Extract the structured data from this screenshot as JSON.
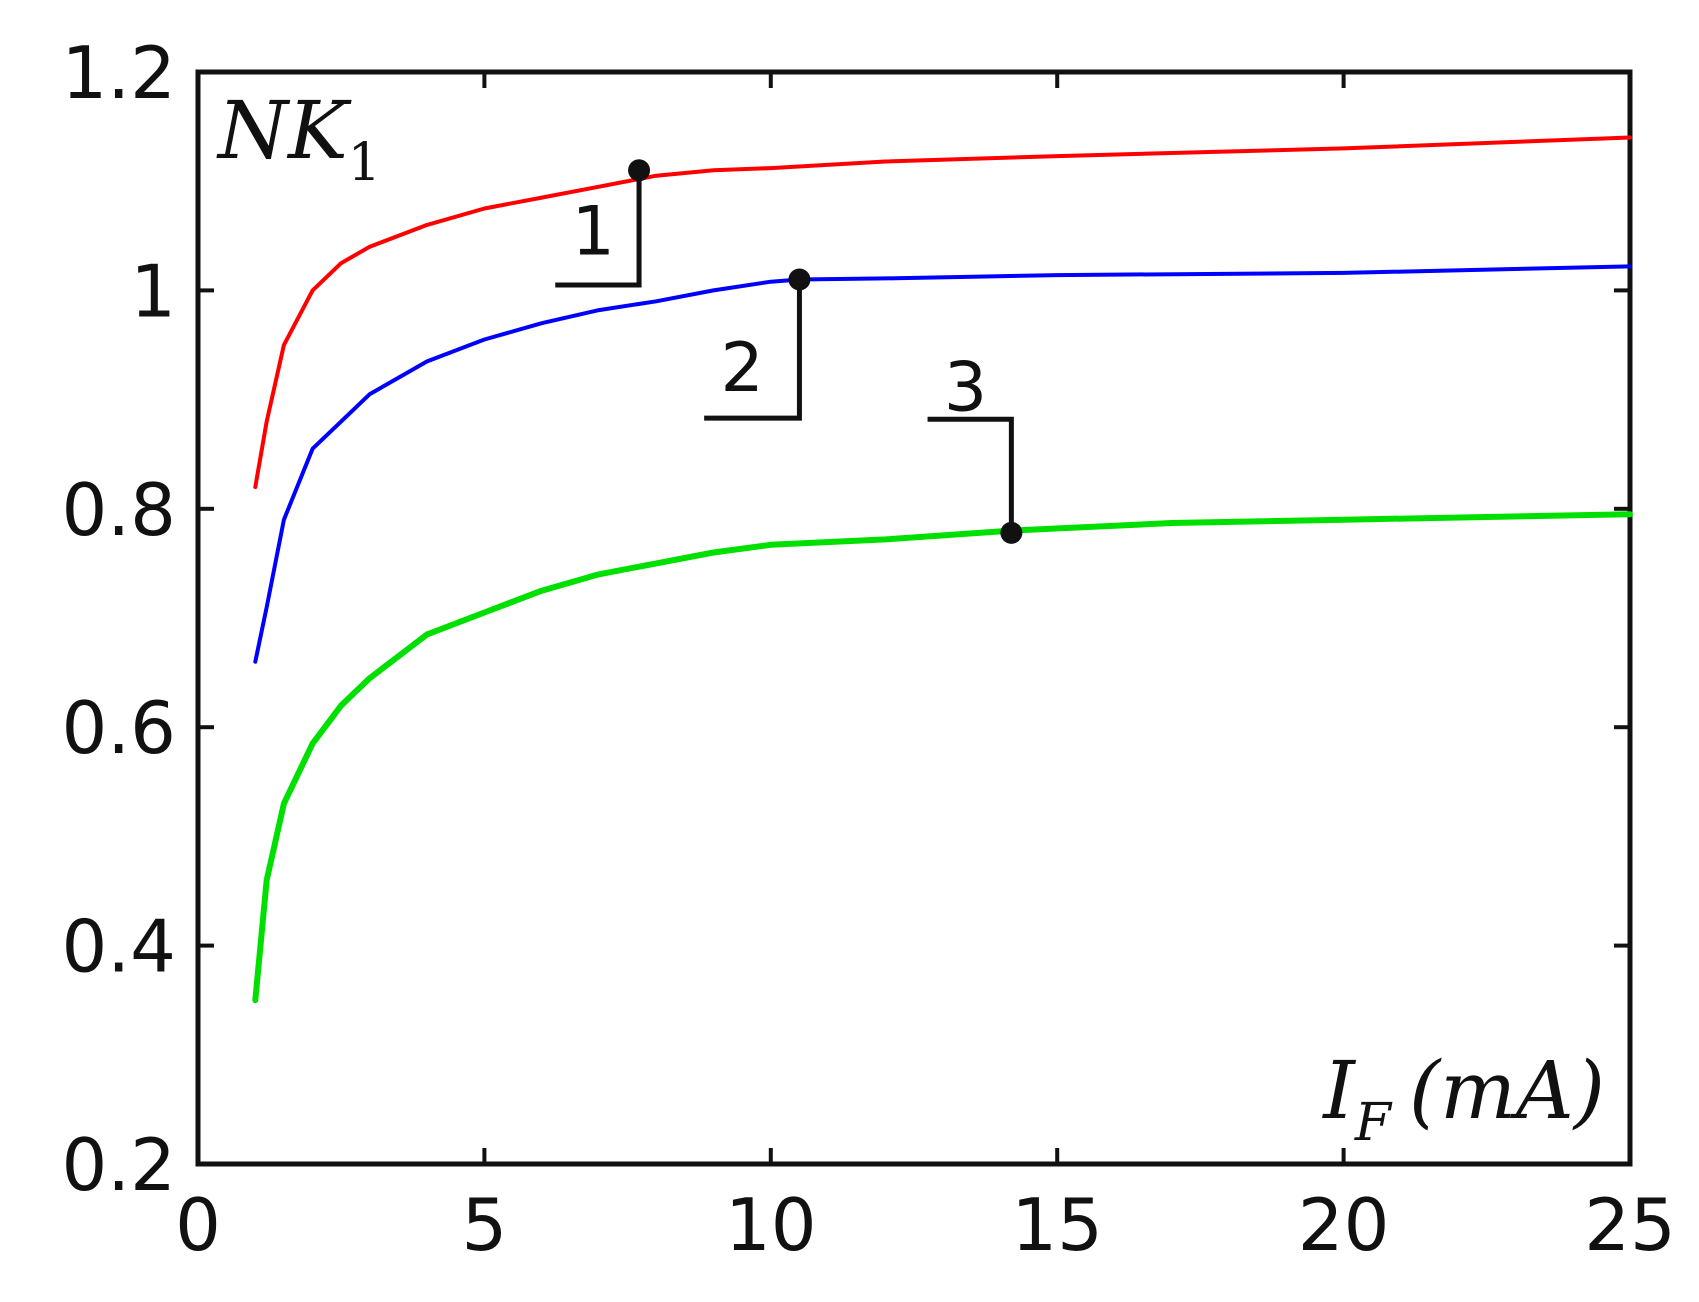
{
  "chart_data": {
    "type": "line",
    "title": "",
    "xlabel": {
      "symbol": "I",
      "subscript": "F",
      "unit": "(mA)"
    },
    "ylabel": {
      "symbol": "NK",
      "subscript": "1"
    },
    "xlim": [
      0,
      25
    ],
    "ylim": [
      0.2,
      1.2
    ],
    "x_ticks": [
      0,
      5,
      10,
      15,
      20,
      25
    ],
    "x_tick_labels": [
      "0",
      "5",
      "10",
      "15",
      "20",
      "25"
    ],
    "y_ticks": [
      0.2,
      0.4,
      0.6,
      0.8,
      1.0,
      1.2
    ],
    "y_tick_labels": [
      "0.2",
      "0.4",
      "0.6",
      "0.8",
      "1",
      "1.2"
    ],
    "grid": false,
    "series": [
      {
        "label": "1",
        "color": "#ff0000",
        "x": [
          1,
          1.2,
          1.5,
          2,
          2.5,
          3,
          4,
          5,
          6,
          7,
          8,
          9,
          10,
          12,
          15,
          20,
          25
        ],
        "y": [
          0.82,
          0.88,
          0.95,
          1.0,
          1.025,
          1.04,
          1.06,
          1.075,
          1.085,
          1.095,
          1.105,
          1.11,
          1.112,
          1.118,
          1.123,
          1.13,
          1.14
        ],
        "marker": {
          "x": 7.7,
          "y": 1.11
        },
        "callout": {
          "label_x": 6.9,
          "label_y": 1.055,
          "corner_y": 1.005
        }
      },
      {
        "label": "2",
        "color": "#0000ff",
        "x": [
          1,
          1.2,
          1.5,
          2,
          2.5,
          3,
          4,
          5,
          6,
          7,
          8,
          9,
          10,
          10.5,
          12,
          15,
          20,
          25
        ],
        "y": [
          0.66,
          0.71,
          0.79,
          0.855,
          0.88,
          0.905,
          0.935,
          0.955,
          0.97,
          0.982,
          0.99,
          1.0,
          1.008,
          1.01,
          1.011,
          1.014,
          1.016,
          1.022
        ],
        "marker": {
          "x": 10.5,
          "y": 1.01
        },
        "callout": {
          "label_x": 9.5,
          "label_y": 0.93,
          "corner_y": 0.883
        }
      },
      {
        "label": "3",
        "color": "#00e000",
        "x": [
          1,
          1.2,
          1.5,
          2,
          2.5,
          3,
          4,
          5,
          6,
          7,
          8,
          9,
          10,
          12,
          14.2,
          17,
          20,
          25
        ],
        "y": [
          0.35,
          0.46,
          0.53,
          0.585,
          0.62,
          0.645,
          0.685,
          0.705,
          0.725,
          0.74,
          0.75,
          0.76,
          0.767,
          0.772,
          0.78,
          0.787,
          0.79,
          0.795
        ],
        "marker": {
          "x": 14.2,
          "y": 0.778
        },
        "callout": {
          "label_x": 13.4,
          "label_y": 0.912,
          "corner_y": 0.882
        }
      }
    ]
  }
}
